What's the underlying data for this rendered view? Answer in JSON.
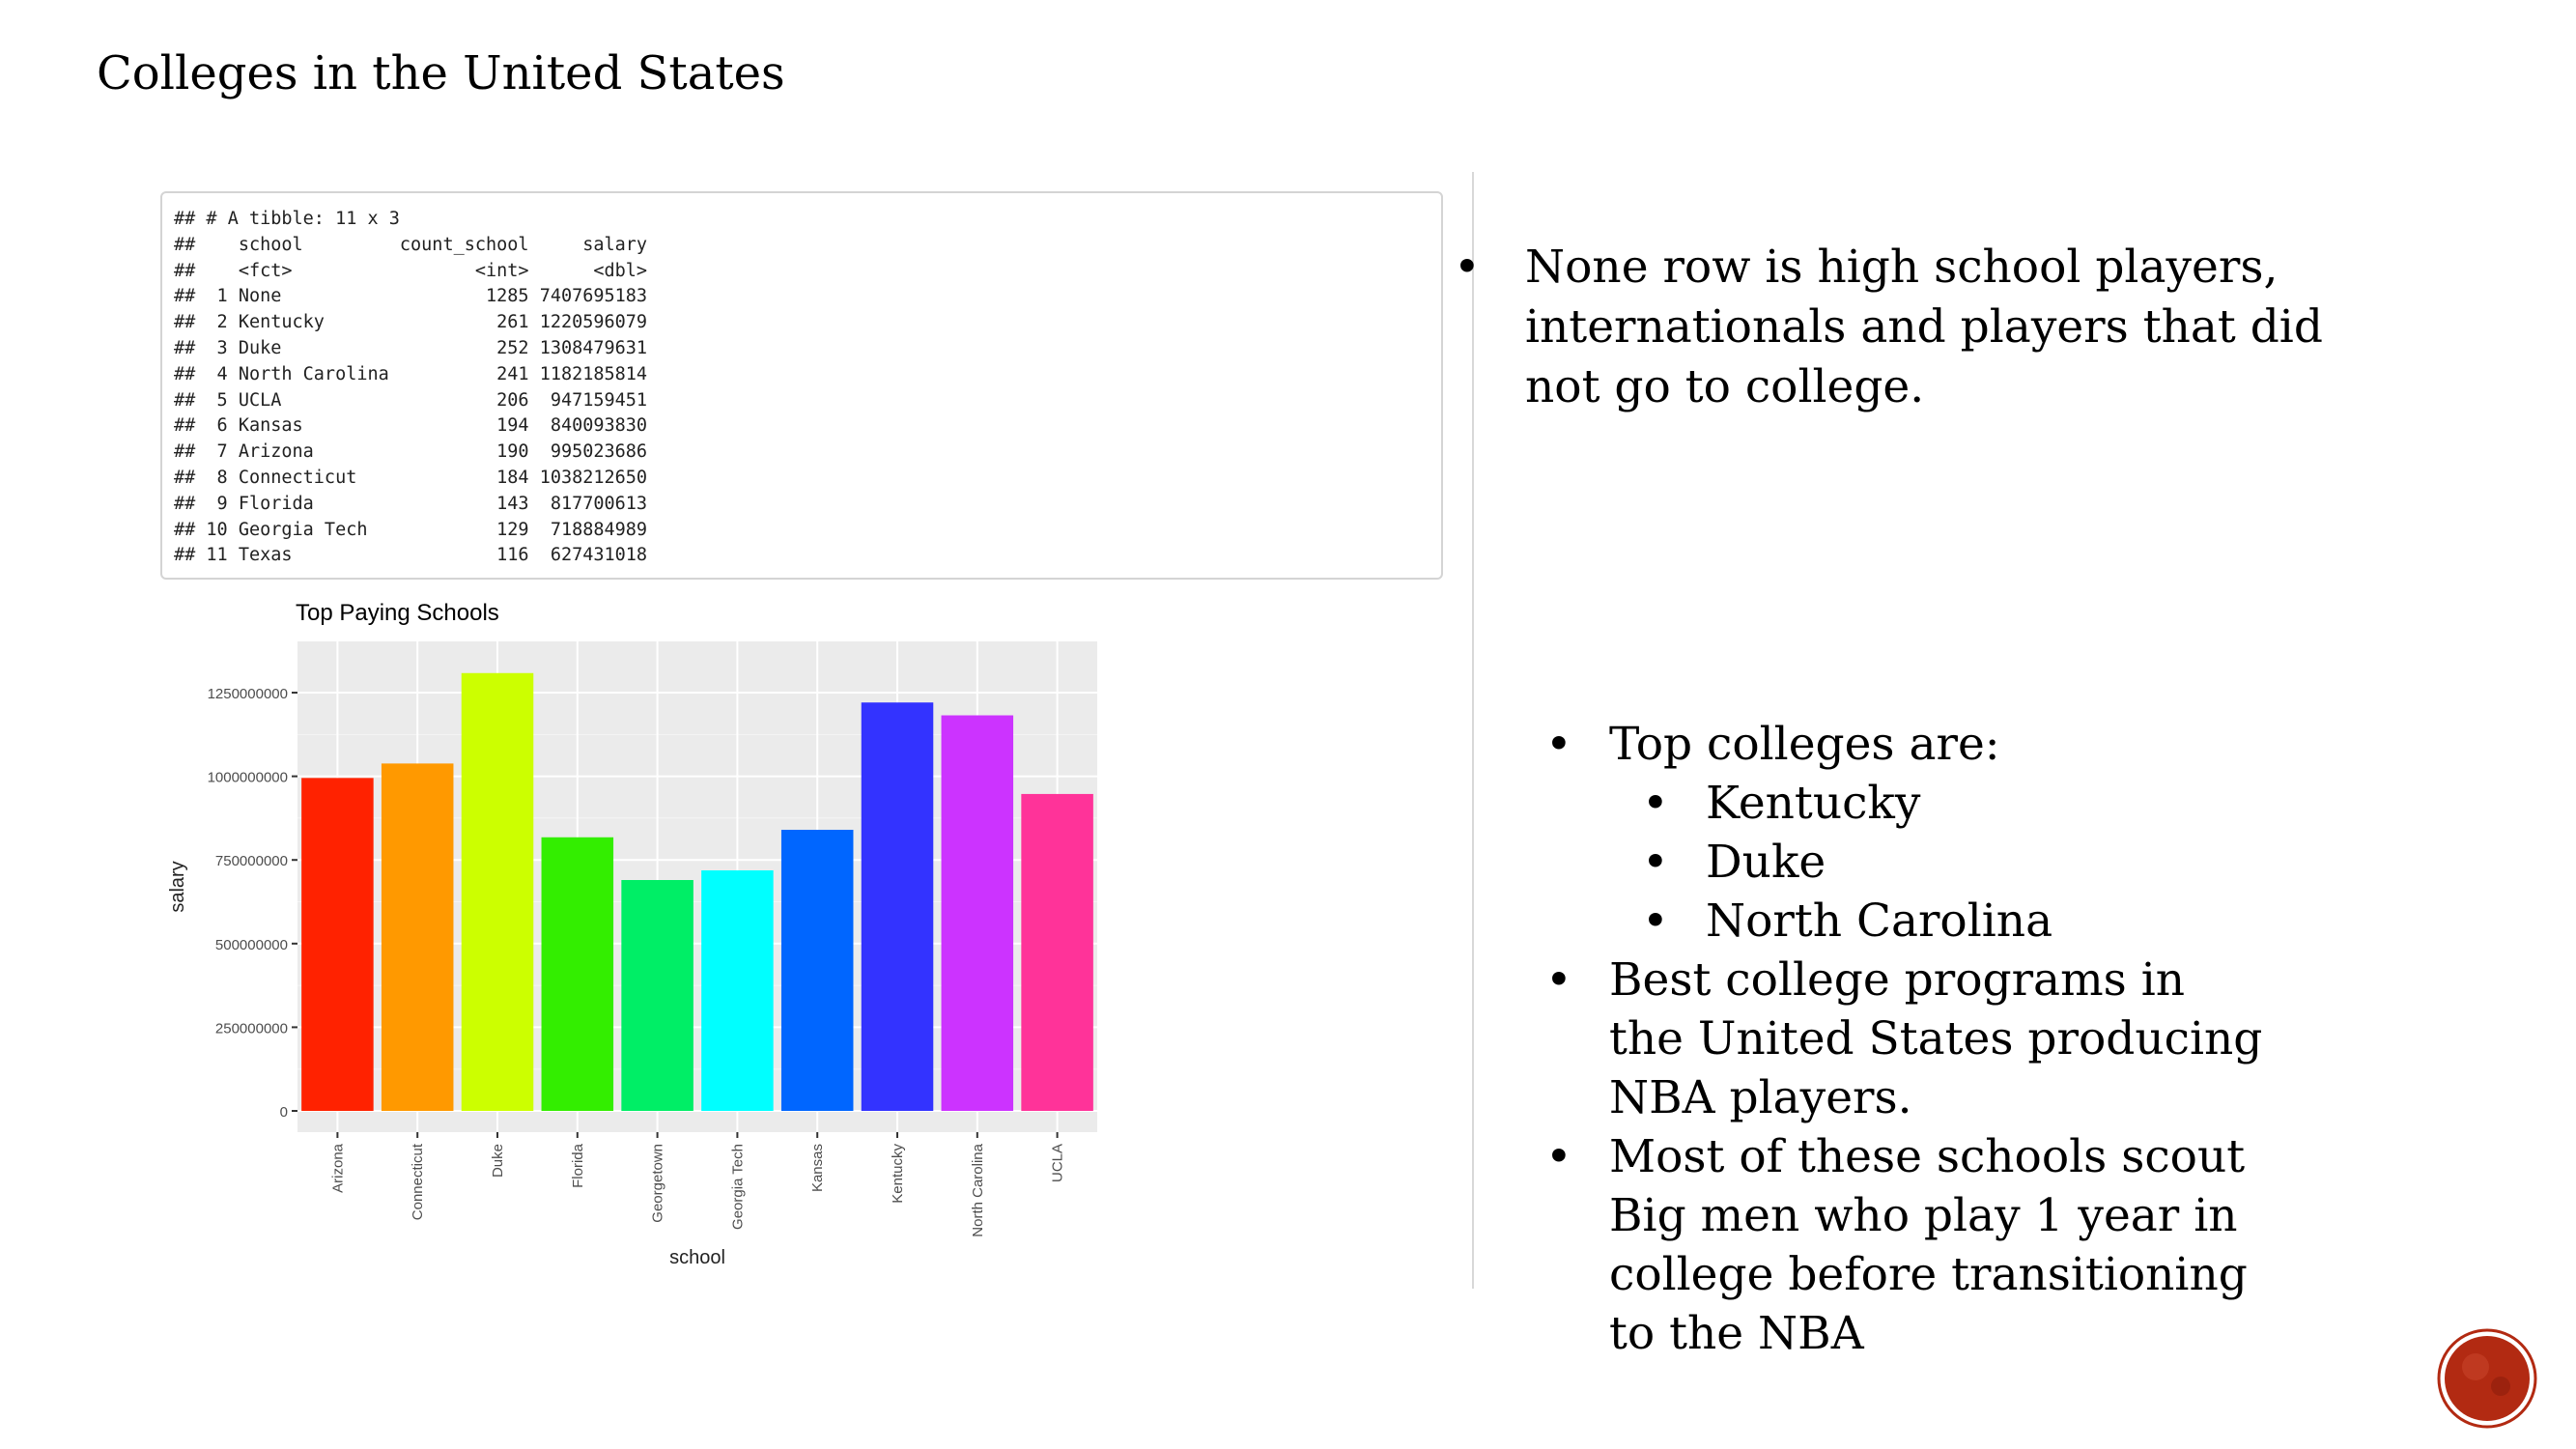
{
  "slide": {
    "title": "Colleges in the United States"
  },
  "code_output": {
    "lines": [
      "## # A tibble: 11 x 3",
      "##    school         count_school     salary",
      "##    <fct>                 <int>      <dbl>",
      "##  1 None                   1285 7407695183",
      "##  2 Kentucky                261 1220596079",
      "##  3 Duke                    252 1308479631",
      "##  4 North Carolina          241 1182185814",
      "##  5 UCLA                    206  947159451",
      "##  6 Kansas                  194  840093830",
      "##  7 Arizona                 190  995023686",
      "##  8 Connecticut             184 1038212650",
      "##  9 Florida                 143  817700613",
      "## 10 Georgia Tech            129  718884989",
      "## 11 Texas                   116  627431018"
    ]
  },
  "chart_data": {
    "type": "bar",
    "title": "Top Paying Schools",
    "xlabel": "school",
    "ylabel": "salary",
    "categories": [
      "Arizona",
      "Connecticut",
      "Duke",
      "Florida",
      "Georgetown",
      "Georgia Tech",
      "Kansas",
      "Kentucky",
      "North Carolina",
      "UCLA"
    ],
    "values": [
      995023686,
      1038212650,
      1308479631,
      817700613,
      690000000,
      718884989,
      840093830,
      1220596079,
      1182185814,
      947159451
    ],
    "colors": [
      "#FF2200",
      "#FF9900",
      "#CCFF00",
      "#33EE00",
      "#00EE66",
      "#00FFFF",
      "#0066FF",
      "#3333FF",
      "#CC33FF",
      "#FF3399"
    ],
    "yticks": [
      0,
      250000000,
      500000000,
      750000000,
      1000000000,
      1250000000
    ],
    "ytick_labels": [
      "0",
      "250000000",
      "500000000",
      "750000000",
      "1000000000",
      "1250000000"
    ],
    "ylim": [
      0,
      1380000000
    ],
    "grid": true,
    "panel_background": "#EBEBEB"
  },
  "notes": {
    "first_bullet": "None row is high school players, internationals and players that did not go to college.",
    "first_bullet_lines": [
      "None row is high school players,",
      "internationals and players that did",
      "not go to college."
    ]
  },
  "list": {
    "top_colleges_label": "Top colleges are:",
    "top_colleges": [
      "Kentucky",
      "Duke",
      "North Carolina"
    ],
    "best_programs_lines": [
      "Best college programs in",
      "the United States producing",
      "NBA players."
    ],
    "big_men_lines": [
      "Most of these schools scout",
      "Big men who play 1 year in",
      "college before transitioning",
      "to the NBA"
    ],
    "bullet_char": "•"
  },
  "logo": {
    "icon": "red-circle-logo",
    "color": "#B22A12"
  }
}
